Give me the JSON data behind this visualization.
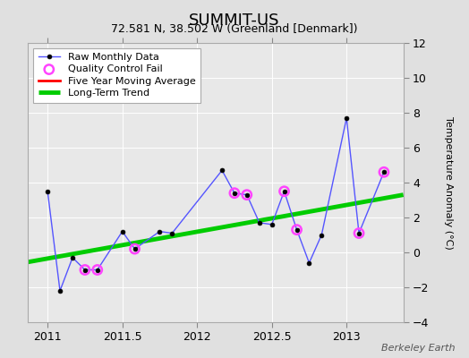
{
  "title": "SUMMIT-US",
  "subtitle": "72.581 N, 38.502 W (Greenland [Denmark])",
  "ylabel": "Temperature Anomaly (°C)",
  "watermark": "Berkeley Earth",
  "xlim": [
    2010.87,
    2013.38
  ],
  "ylim": [
    -4,
    12
  ],
  "yticks": [
    -4,
    -2,
    0,
    2,
    4,
    6,
    8,
    10,
    12
  ],
  "xticks": [
    2011,
    2011.5,
    2012,
    2012.5,
    2013
  ],
  "xticklabels": [
    "2011",
    "2011.5",
    "2012",
    "2012.5",
    "2013"
  ],
  "background_color": "#e0e0e0",
  "plot_bg_color": "#e8e8e8",
  "raw_x": [
    2011.0,
    2011.083,
    2011.167,
    2011.25,
    2011.333,
    2011.5,
    2011.583,
    2011.75,
    2011.833,
    2012.167,
    2012.25,
    2012.333,
    2012.417,
    2012.5,
    2012.583,
    2012.667,
    2012.75,
    2012.833,
    2013.0,
    2013.083,
    2013.25
  ],
  "raw_y": [
    3.5,
    -2.2,
    -0.3,
    -1.0,
    -1.0,
    1.2,
    0.2,
    1.2,
    1.1,
    4.7,
    3.4,
    3.3,
    1.7,
    1.6,
    3.5,
    1.3,
    -0.6,
    1.0,
    7.7,
    1.1,
    4.6
  ],
  "qc_fail_x": [
    2011.25,
    2011.333,
    2011.583,
    2012.25,
    2012.333,
    2012.583,
    2012.667,
    2013.083,
    2013.25
  ],
  "qc_fail_y": [
    -1.0,
    -1.0,
    0.2,
    3.4,
    3.3,
    3.5,
    1.3,
    1.1,
    4.6
  ],
  "trend_x": [
    2010.87,
    2013.38
  ],
  "trend_y": [
    -0.55,
    3.3
  ],
  "raw_line_color": "#5555ff",
  "raw_marker_color": "#000000",
  "qc_color": "#ff44ff",
  "trend_color": "#00cc00",
  "mavg_color": "#ff0000",
  "grid_color": "#ffffff",
  "title_fontsize": 13,
  "subtitle_fontsize": 9,
  "ylabel_fontsize": 8,
  "tick_fontsize": 9,
  "legend_fontsize": 8
}
